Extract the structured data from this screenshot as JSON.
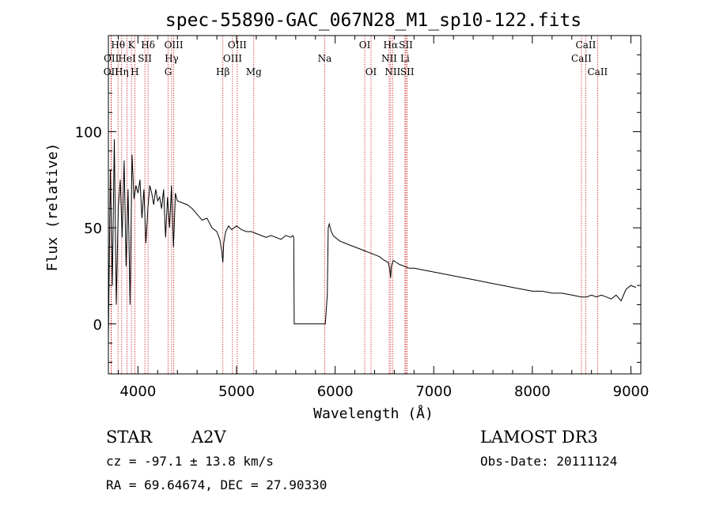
{
  "chart_data": {
    "type": "line",
    "title": "spec-55890-GAC_067N28_M1_sp10-122.fits",
    "xlabel": "Wavelength (Å)",
    "ylabel": "Flux (relative)",
    "xlim": [
      3700,
      9100
    ],
    "ylim": [
      -26,
      150
    ],
    "xticks": [
      4000,
      5000,
      6000,
      7000,
      8000,
      9000
    ],
    "yticks": [
      0,
      50,
      100
    ],
    "grid": false,
    "series": [
      {
        "name": "spectrum",
        "x": [
          3700,
          3720,
          3740,
          3760,
          3780,
          3800,
          3820,
          3840,
          3860,
          3880,
          3900,
          3920,
          3940,
          3960,
          3980,
          4000,
          4020,
          4040,
          4060,
          4080,
          4100,
          4120,
          4140,
          4160,
          4180,
          4200,
          4220,
          4240,
          4260,
          4280,
          4300,
          4320,
          4340,
          4360,
          4380,
          4400,
          4450,
          4500,
          4550,
          4600,
          4650,
          4700,
          4750,
          4800,
          4830,
          4850,
          4861,
          4870,
          4890,
          4920,
          4950,
          5000,
          5050,
          5100,
          5150,
          5200,
          5250,
          5300,
          5350,
          5400,
          5450,
          5500,
          5550,
          5570,
          5580,
          5585,
          5600,
          5700,
          5800,
          5900,
          5920,
          5930,
          5940,
          5960,
          5980,
          6000,
          6050,
          6100,
          6150,
          6200,
          6250,
          6300,
          6350,
          6400,
          6450,
          6500,
          6540,
          6555,
          6563,
          6570,
          6590,
          6620,
          6650,
          6700,
          6750,
          6800,
          6900,
          7000,
          7100,
          7200,
          7300,
          7400,
          7500,
          7600,
          7700,
          7800,
          7900,
          8000,
          8100,
          8200,
          8300,
          8400,
          8500,
          8550,
          8600,
          8650,
          8700,
          8750,
          8800,
          8850,
          8900,
          8950,
          9000,
          9050
        ],
        "y": [
          -8,
          80,
          20,
          96,
          10,
          60,
          75,
          45,
          85,
          30,
          70,
          10,
          88,
          65,
          72,
          68,
          75,
          55,
          70,
          42,
          60,
          72,
          68,
          62,
          70,
          64,
          66,
          60,
          70,
          45,
          66,
          50,
          72,
          40,
          68,
          64,
          63,
          62,
          60,
          57,
          54,
          55,
          50,
          48,
          44,
          38,
          32,
          42,
          48,
          51,
          49,
          51,
          49,
          48,
          48,
          47,
          46,
          45,
          46,
          45,
          44,
          46,
          45,
          46,
          45,
          0,
          0,
          0,
          0,
          0,
          15,
          50,
          52,
          48,
          46,
          45,
          43,
          42,
          41,
          40,
          39,
          38,
          37,
          36,
          35,
          33,
          32,
          28,
          24,
          30,
          33,
          32,
          31,
          30,
          29,
          29,
          28,
          27,
          26,
          25,
          24,
          23,
          22,
          21,
          20,
          19,
          18,
          17,
          17,
          16,
          16,
          15,
          14,
          14,
          15,
          14,
          15,
          14,
          13,
          15,
          12,
          18,
          20,
          19
        ],
        "color": "#000000"
      }
    ],
    "reference_lines": [
      {
        "name": "OII",
        "wave": 3727,
        "label_row": 3
      },
      {
        "name": "OII",
        "wave": 3730,
        "label_row": 2
      },
      {
        "name": "Hθ",
        "wave": 3798,
        "label_row": 1
      },
      {
        "name": "Hη",
        "wave": 3835,
        "label_row": 3
      },
      {
        "name": "HeI",
        "wave": 3889,
        "label_row": 2
      },
      {
        "name": "K",
        "wave": 3934,
        "label_row": 1
      },
      {
        "name": "H",
        "wave": 3968,
        "label_row": 3
      },
      {
        "name": "SII",
        "wave": 4070,
        "label_row": 2
      },
      {
        "name": "Hδ",
        "wave": 4102,
        "label_row": 1
      },
      {
        "name": "G",
        "wave": 4306,
        "label_row": 3
      },
      {
        "name": "Hγ",
        "wave": 4341,
        "label_row": 2
      },
      {
        "name": "OIII",
        "wave": 4363,
        "label_row": 1
      },
      {
        "name": "Hβ",
        "wave": 4861,
        "label_row": 3
      },
      {
        "name": "OIII",
        "wave": 4959,
        "label_row": 2
      },
      {
        "name": "OIII",
        "wave": 5007,
        "label_row": 1
      },
      {
        "name": "Mg",
        "wave": 5175,
        "label_row": 3
      },
      {
        "name": "Na",
        "wave": 5894,
        "label_row": 2
      },
      {
        "name": "OI",
        "wave": 6300,
        "label_row": 1
      },
      {
        "name": "OI",
        "wave": 6364,
        "label_row": 3
      },
      {
        "name": "NII",
        "wave": 6548,
        "label_row": 2
      },
      {
        "name": "Hα",
        "wave": 6563,
        "label_row": 1
      },
      {
        "name": "NII",
        "wave": 6583,
        "label_row": 3
      },
      {
        "name": "Li",
        "wave": 6708,
        "label_row": 2
      },
      {
        "name": "SII",
        "wave": 6717,
        "label_row": 1
      },
      {
        "name": "SII",
        "wave": 6731,
        "label_row": 3
      },
      {
        "name": "CaII",
        "wave": 8498,
        "label_row": 2
      },
      {
        "name": "CaII",
        "wave": 8542,
        "label_row": 1
      },
      {
        "name": "CaII",
        "wave": 8662,
        "label_row": 3
      }
    ],
    "reference_line_color": "#cc2222"
  },
  "info": {
    "class": "STAR",
    "subclass": "A2V",
    "survey": "LAMOST DR3",
    "cz": "cz = -97.1 ± 13.8 km/s",
    "obs_date": "Obs-Date: 20111124",
    "radec": "RA =  69.64674, DEC =  27.90330"
  }
}
